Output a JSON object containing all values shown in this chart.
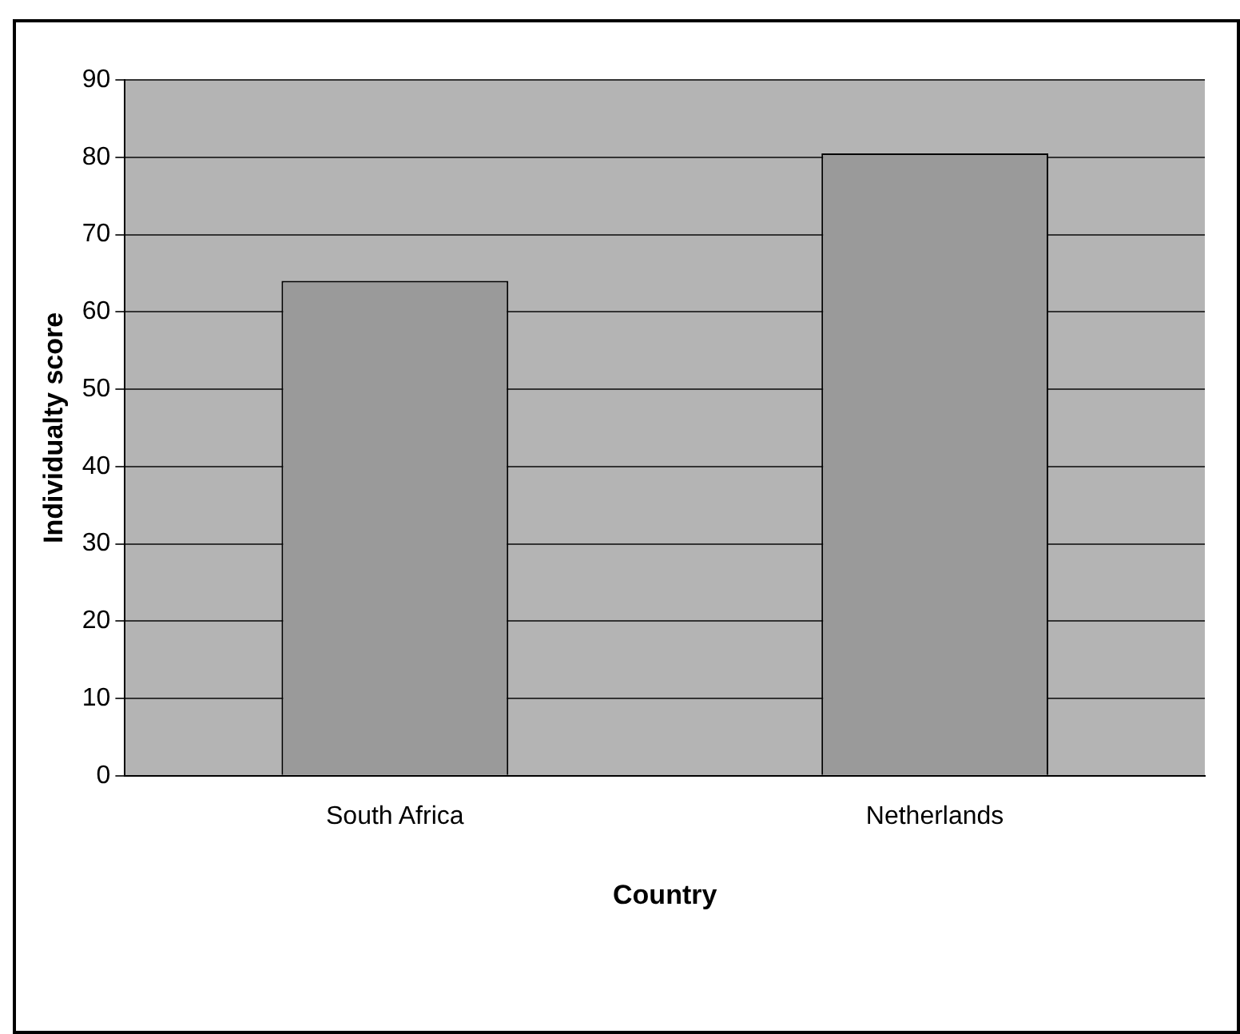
{
  "chart_data": {
    "type": "bar",
    "xlabel": "Country",
    "ylabel": "Individualty score",
    "categories": [
      "South Africa",
      "Netherlands"
    ],
    "values": [
      64,
      80.5
    ],
    "color": "#9a9a9a",
    "ylim": [
      0,
      90
    ],
    "yticks": [
      0,
      10,
      20,
      30,
      40,
      50,
      60,
      70,
      80,
      90
    ],
    "grid": "y"
  }
}
